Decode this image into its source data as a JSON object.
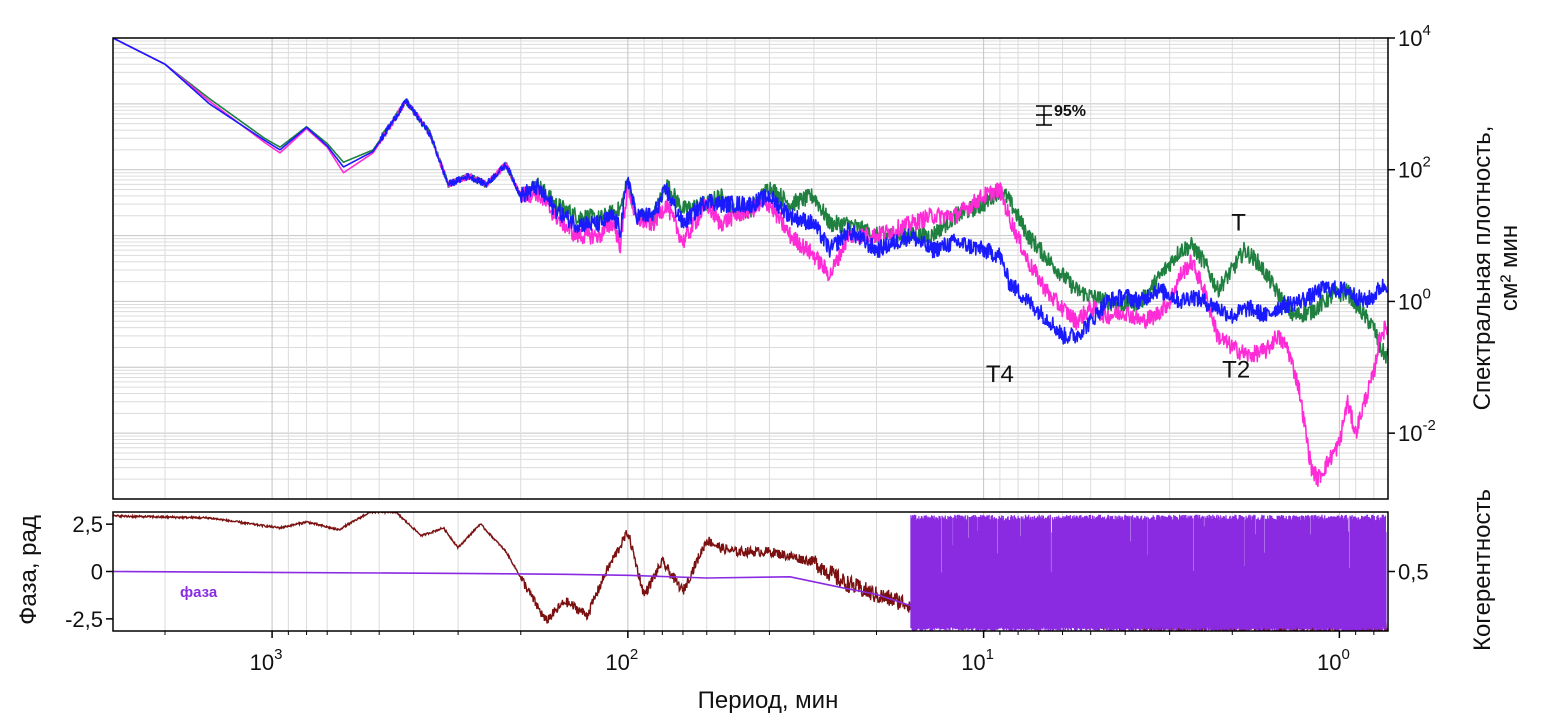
{
  "chart_data": [
    {
      "type": "line",
      "panel": "spectrum",
      "title": "",
      "xlabel": "Период, мин",
      "ylabel_line1": "Спектральная плотность,",
      "ylabel_line2": "см² мин",
      "x_scale": "log-reversed",
      "y_scale": "log",
      "xlim": [
        2800,
        0.73
      ],
      "ylim": [
        0.001,
        10000
      ],
      "x_ticks": [
        {
          "value": 1000,
          "base": "10",
          "exp": "3"
        },
        {
          "value": 100,
          "base": "10",
          "exp": "2"
        },
        {
          "value": 10,
          "base": "10",
          "exp": "1"
        },
        {
          "value": 1,
          "base": "10",
          "exp": "0"
        }
      ],
      "y_ticks": [
        {
          "value": 10000,
          "base": "10",
          "exp": "4"
        },
        {
          "value": 100,
          "base": "10",
          "exp": "2"
        },
        {
          "value": 1,
          "base": "10",
          "exp": "0"
        },
        {
          "value": 0.01,
          "base": "10",
          "exp": "-2"
        }
      ],
      "grid": true,
      "confidence_label": "95%",
      "annotations": [
        {
          "text": "T4",
          "x": 9.0,
          "y": 0.06
        },
        {
          "text": "T2",
          "x": 1.95,
          "y": 0.07
        },
        {
          "text": "T",
          "x": 1.92,
          "y": 12
        }
      ],
      "series": [
        {
          "name": "green",
          "color": "#1f8040",
          "points": [
            [
              2800,
              10000
            ],
            [
              2000,
              4000
            ],
            [
              1500,
              1200
            ],
            [
              1050,
              300
            ],
            [
              950,
              220
            ],
            [
              800,
              450
            ],
            [
              700,
              250
            ],
            [
              630,
              130
            ],
            [
              520,
              200
            ],
            [
              420,
              1100
            ],
            [
              360,
              350
            ],
            [
              320,
              60
            ],
            [
              280,
              80
            ],
            [
              250,
              60
            ],
            [
              220,
              120
            ],
            [
              200,
              40
            ],
            [
              180,
              60
            ],
            [
              160,
              30
            ],
            [
              140,
              20
            ],
            [
              120,
              18
            ],
            [
              105,
              25
            ],
            [
              100,
              70
            ],
            [
              95,
              20
            ],
            [
              85,
              18
            ],
            [
              78,
              60
            ],
            [
              70,
              25
            ],
            [
              60,
              30
            ],
            [
              55,
              40
            ],
            [
              50,
              25
            ],
            [
              45,
              25
            ],
            [
              40,
              55
            ],
            [
              35,
              30
            ],
            [
              30,
              40
            ],
            [
              27,
              15
            ],
            [
              24,
              15
            ],
            [
              20,
              10
            ],
            [
              16,
              10
            ],
            [
              14,
              10
            ],
            [
              12,
              20
            ],
            [
              10,
              30
            ],
            [
              9.0,
              50
            ],
            [
              8.5,
              35
            ],
            [
              7.5,
              10
            ],
            [
              6.5,
              4
            ],
            [
              5.5,
              1.5
            ],
            [
              5.0,
              1.2
            ],
            [
              4.5,
              1.0
            ],
            [
              4.0,
              0.9
            ],
            [
              3.6,
              1.0
            ],
            [
              3.1,
              3
            ],
            [
              2.8,
              6
            ],
            [
              2.6,
              7
            ],
            [
              2.4,
              4
            ],
            [
              2.2,
              1.5
            ],
            [
              2.0,
              3
            ],
            [
              1.85,
              6
            ],
            [
              1.7,
              4
            ],
            [
              1.6,
              2.5
            ],
            [
              1.5,
              1.4
            ],
            [
              1.35,
              0.6
            ],
            [
              1.2,
              0.7
            ],
            [
              1.05,
              1.2
            ],
            [
              0.95,
              1.4
            ],
            [
              0.85,
              0.6
            ],
            [
              0.8,
              0.4
            ],
            [
              0.77,
              0.2
            ],
            [
              0.74,
              0.15
            ]
          ]
        },
        {
          "name": "magenta",
          "color": "#ff2bd6",
          "points": [
            [
              2800,
              10000
            ],
            [
              2000,
              4000
            ],
            [
              1500,
              1100
            ],
            [
              1050,
              260
            ],
            [
              950,
              180
            ],
            [
              800,
              420
            ],
            [
              700,
              220
            ],
            [
              630,
              90
            ],
            [
              520,
              180
            ],
            [
              420,
              1100
            ],
            [
              360,
              350
            ],
            [
              320,
              60
            ],
            [
              280,
              80
            ],
            [
              250,
              60
            ],
            [
              220,
              120
            ],
            [
              200,
              40
            ],
            [
              180,
              45
            ],
            [
              160,
              20
            ],
            [
              140,
              10
            ],
            [
              120,
              10
            ],
            [
              110,
              16
            ],
            [
              105,
              7
            ],
            [
              100,
              60
            ],
            [
              95,
              18
            ],
            [
              85,
              15
            ],
            [
              78,
              30
            ],
            [
              70,
              8
            ],
            [
              60,
              30
            ],
            [
              55,
              15
            ],
            [
              50,
              20
            ],
            [
              45,
              25
            ],
            [
              40,
              30
            ],
            [
              35,
              10
            ],
            [
              30,
              5
            ],
            [
              27,
              2.5
            ],
            [
              24,
              10
            ],
            [
              20,
              10
            ],
            [
              16,
              15
            ],
            [
              14,
              20
            ],
            [
              12,
              20
            ],
            [
              10,
              40
            ],
            [
              9.0,
              50
            ],
            [
              8.5,
              20
            ],
            [
              7.5,
              4
            ],
            [
              6.5,
              1.2
            ],
            [
              5.5,
              0.5
            ],
            [
              5.0,
              0.8
            ],
            [
              4.5,
              0.6
            ],
            [
              4.0,
              0.7
            ],
            [
              3.6,
              0.5
            ],
            [
              3.3,
              0.6
            ],
            [
              3.0,
              1.0
            ],
            [
              2.8,
              2.5
            ],
            [
              2.6,
              4
            ],
            [
              2.4,
              1.5
            ],
            [
              2.2,
              0.3
            ],
            [
              2.0,
              0.2
            ],
            [
              1.8,
              0.15
            ],
            [
              1.6,
              0.18
            ],
            [
              1.5,
              0.3
            ],
            [
              1.4,
              0.2
            ],
            [
              1.3,
              0.05
            ],
            [
              1.2,
              0.003
            ],
            [
              1.15,
              0.002
            ],
            [
              1.1,
              0.003
            ],
            [
              1.0,
              0.007
            ],
            [
              0.95,
              0.03
            ],
            [
              0.9,
              0.01
            ],
            [
              0.85,
              0.03
            ],
            [
              0.8,
              0.08
            ],
            [
              0.77,
              0.3
            ],
            [
              0.74,
              0.4
            ]
          ]
        },
        {
          "name": "blue",
          "color": "#1a1aff",
          "points": [
            [
              2800,
              10000
            ],
            [
              2000,
              4000
            ],
            [
              1500,
              1000
            ],
            [
              1050,
              280
            ],
            [
              950,
              200
            ],
            [
              800,
              440
            ],
            [
              700,
              230
            ],
            [
              630,
              110
            ],
            [
              520,
              190
            ],
            [
              420,
              1100
            ],
            [
              360,
              350
            ],
            [
              320,
              60
            ],
            [
              280,
              80
            ],
            [
              250,
              60
            ],
            [
              220,
              120
            ],
            [
              200,
              40
            ],
            [
              180,
              55
            ],
            [
              160,
              25
            ],
            [
              140,
              15
            ],
            [
              120,
              15
            ],
            [
              110,
              20
            ],
            [
              105,
              12
            ],
            [
              100,
              80
            ],
            [
              95,
              20
            ],
            [
              85,
              20
            ],
            [
              78,
              50
            ],
            [
              70,
              15
            ],
            [
              60,
              35
            ],
            [
              55,
              30
            ],
            [
              50,
              30
            ],
            [
              45,
              30
            ],
            [
              40,
              40
            ],
            [
              35,
              20
            ],
            [
              30,
              15
            ],
            [
              27,
              6
            ],
            [
              24,
              12
            ],
            [
              20,
              6
            ],
            [
              16,
              10
            ],
            [
              14,
              6
            ],
            [
              12,
              8
            ],
            [
              10,
              6
            ],
            [
              9.0,
              5
            ],
            [
              8.5,
              2
            ],
            [
              7.5,
              1.0
            ],
            [
              6.5,
              0.5
            ],
            [
              6.0,
              0.3
            ],
            [
              5.5,
              0.3
            ],
            [
              5.0,
              0.5
            ],
            [
              4.5,
              1.0
            ],
            [
              4.0,
              1.2
            ],
            [
              3.6,
              1.0
            ],
            [
              3.3,
              1.5
            ],
            [
              3.0,
              1.3
            ],
            [
              2.8,
              1.0
            ],
            [
              2.6,
              1.2
            ],
            [
              2.4,
              1.0
            ],
            [
              2.2,
              0.8
            ],
            [
              2.0,
              0.6
            ],
            [
              1.8,
              0.8
            ],
            [
              1.6,
              0.6
            ],
            [
              1.5,
              0.8
            ],
            [
              1.4,
              0.9
            ],
            [
              1.3,
              1.0
            ],
            [
              1.2,
              1.2
            ],
            [
              1.1,
              1.6
            ],
            [
              1.0,
              1.5
            ],
            [
              0.95,
              1.5
            ],
            [
              0.9,
              1.2
            ],
            [
              0.85,
              1.0
            ],
            [
              0.8,
              1.2
            ],
            [
              0.77,
              1.6
            ],
            [
              0.74,
              1.8
            ]
          ]
        }
      ]
    },
    {
      "type": "line",
      "panel": "phase-coherence",
      "xlabel": "Период, мин",
      "ylabel_left": "Фаза, рад",
      "ylabel_right": "Когерентность",
      "legend": [
        {
          "name": "фаза",
          "color": "#8a2be2"
        }
      ],
      "ylim_left": [
        -3.1416,
        3.1416
      ],
      "left_ticks": [
        {
          "value": 2.5,
          "label": "2,5"
        },
        {
          "value": 0,
          "label": "0"
        },
        {
          "value": -2.5,
          "label": "-2,5"
        }
      ],
      "ylim_right": [
        0.2,
        0.8
      ],
      "right_ticks": [
        {
          "value": 0.5,
          "label": "0,5"
        }
      ],
      "series": [
        {
          "name": "фаза",
          "axis": "left",
          "color": "#8a2be2",
          "points": [
            [
              2800,
              0
            ],
            [
              1000,
              -0.05
            ],
            [
              300,
              -0.1
            ],
            [
              150,
              -0.15
            ],
            [
              100,
              -0.2
            ],
            [
              60,
              -0.25
            ],
            [
              35,
              -0.35
            ],
            [
              25,
              -0.8
            ],
            [
              20,
              -1.2
            ],
            [
              15,
              -2.0
            ],
            [
              12,
              -2.8
            ],
            [
              10,
              -3.0
            ]
          ],
          "noisy_band": {
            "from_x": 16,
            "to_x": 0.74,
            "high": 3.0,
            "low": -3.14
          }
        },
        {
          "name": "Когерентность",
          "axis": "right",
          "color": "#7a1010",
          "points": [
            [
              2800,
              0.78
            ],
            [
              1500,
              0.77
            ],
            [
              1050,
              0.73
            ],
            [
              950,
              0.72
            ],
            [
              800,
              0.75
            ],
            [
              650,
              0.71
            ],
            [
              530,
              0.8
            ],
            [
              450,
              0.8
            ],
            [
              380,
              0.68
            ],
            [
              330,
              0.72
            ],
            [
              300,
              0.62
            ],
            [
              260,
              0.74
            ],
            [
              220,
              0.6
            ],
            [
              190,
              0.4
            ],
            [
              170,
              0.25
            ],
            [
              150,
              0.35
            ],
            [
              130,
              0.28
            ],
            [
              115,
              0.5
            ],
            [
              100,
              0.7
            ],
            [
              90,
              0.38
            ],
            [
              80,
              0.55
            ],
            [
              70,
              0.4
            ],
            [
              60,
              0.66
            ],
            [
              55,
              0.62
            ],
            [
              50,
              0.6
            ],
            [
              40,
              0.6
            ],
            [
              30,
              0.55
            ],
            [
              25,
              0.45
            ],
            [
              20,
              0.38
            ],
            [
              15,
              0.32
            ],
            [
              10,
              0.3
            ],
            [
              5,
              0.25
            ],
            [
              2,
              0.22
            ],
            [
              0.74,
              0.2
            ]
          ]
        }
      ]
    }
  ]
}
